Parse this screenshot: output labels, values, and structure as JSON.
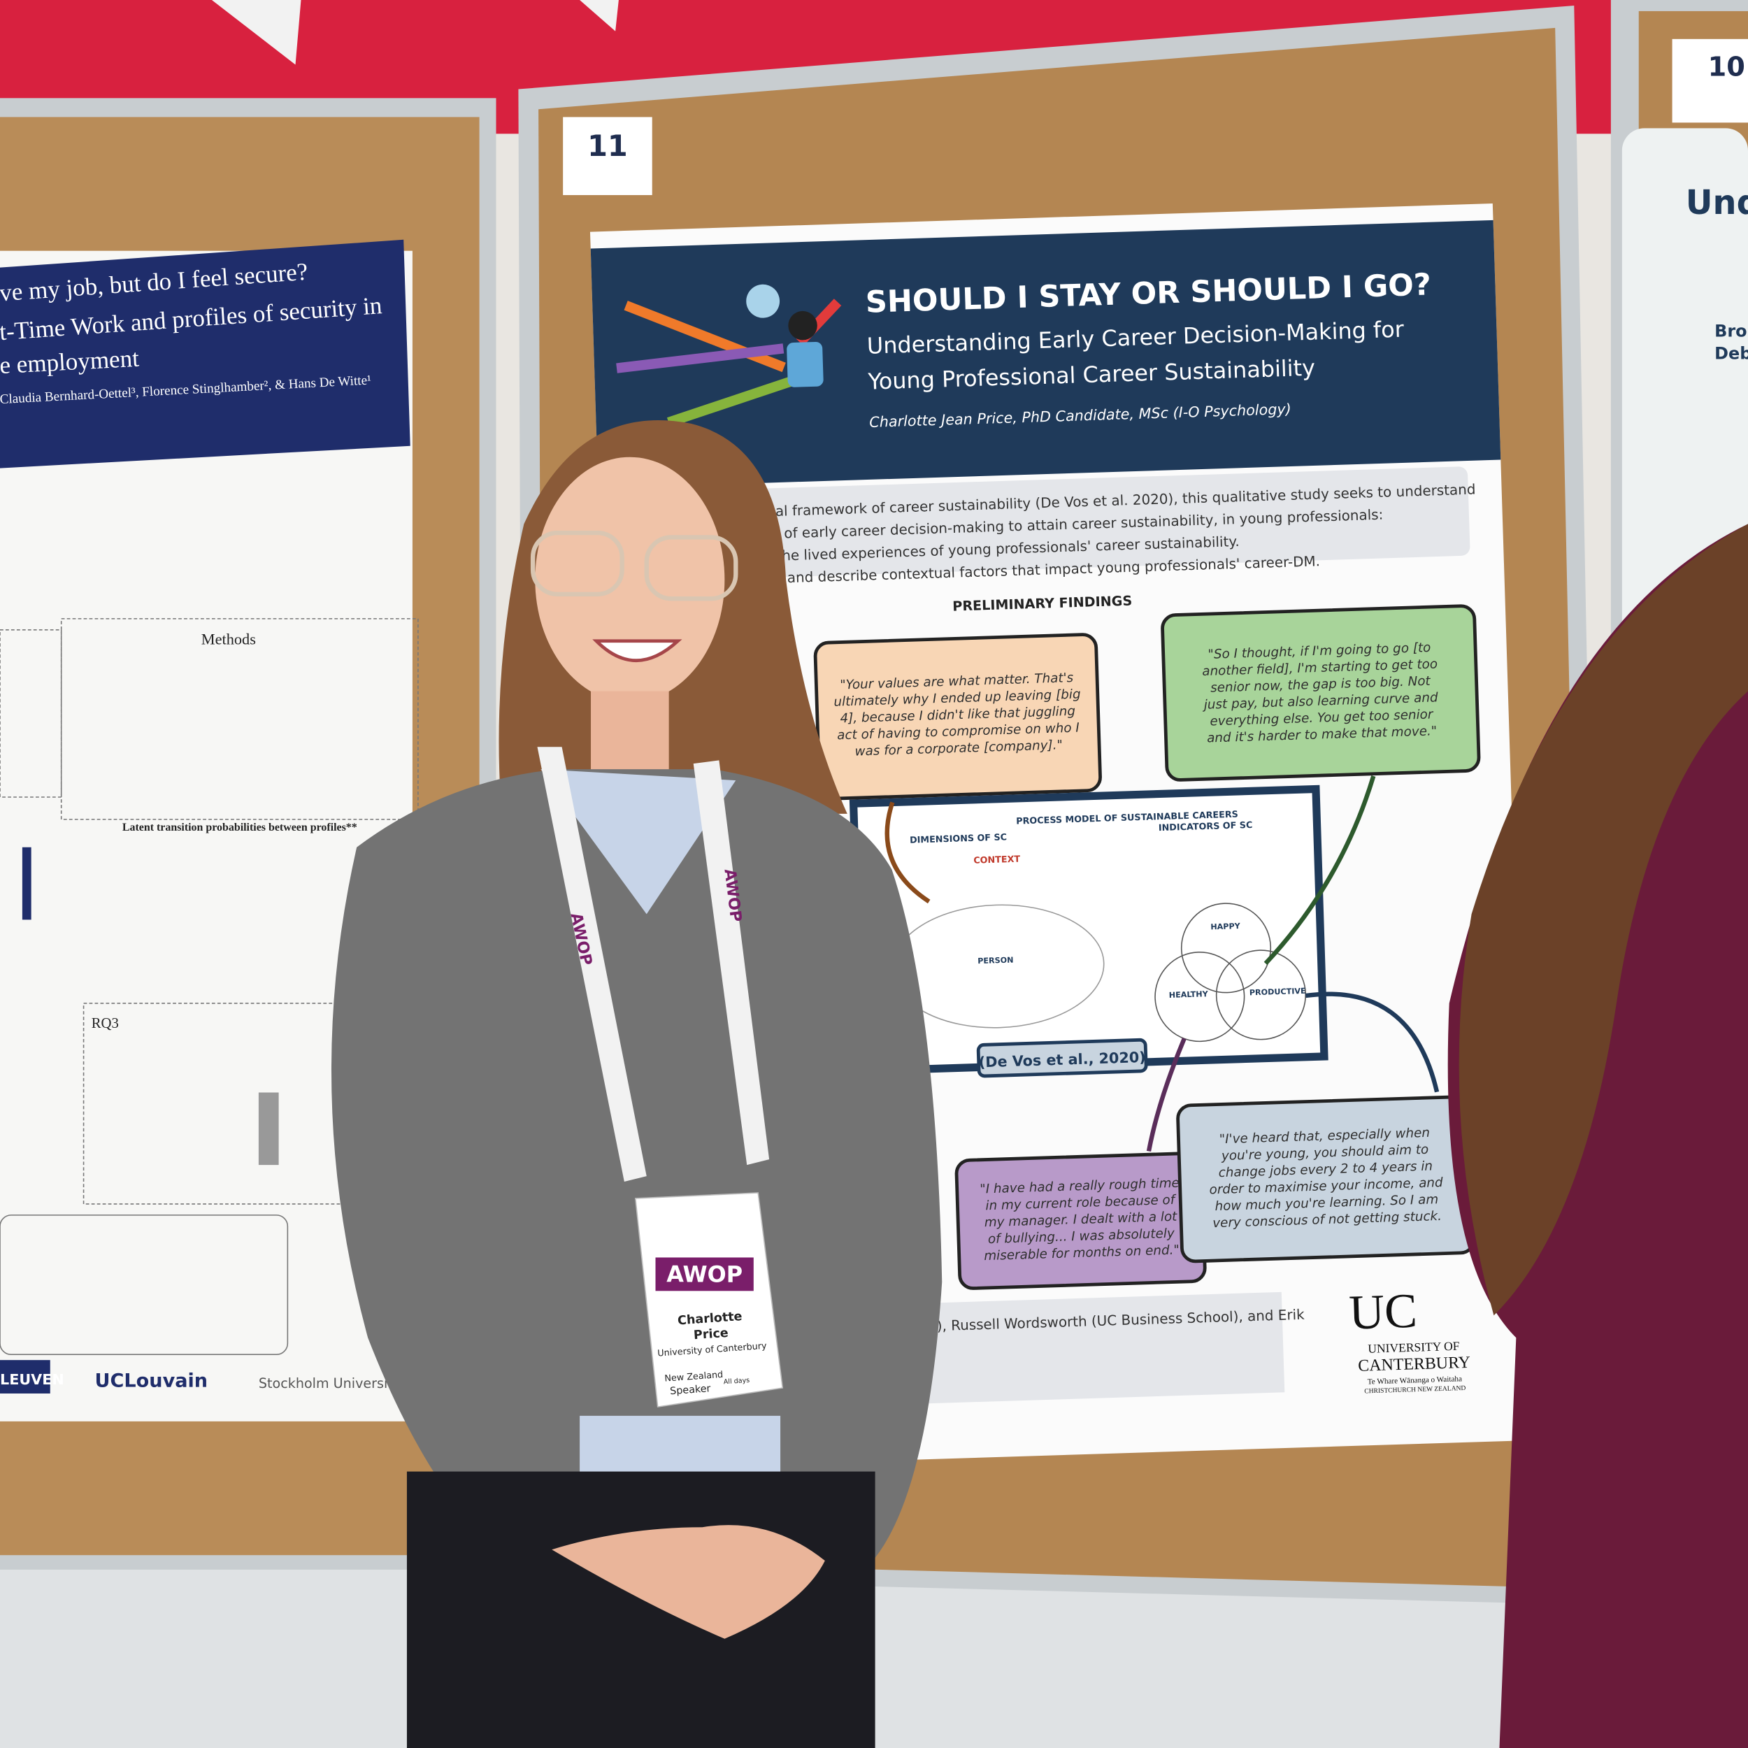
{
  "left_poster": {
    "title_lines": [
      "ve my job, but do I feel secure?",
      "t-Time Work and profiles of security in",
      "e employment"
    ],
    "authors": "Claudia Bernhard-Oettel³, Florence Stinglhamber², & Hans De Witte¹",
    "methods_heading": "Methods",
    "table_title": "Latent transition probabilities between profiles**",
    "rq": "RQ3",
    "logos": [
      "LEUVEN",
      "UCLouvain",
      "Stockholm University"
    ]
  },
  "center_board": {
    "number": "11"
  },
  "right_board": {
    "number": "10",
    "poster_fragments": [
      "Und",
      "Bro",
      "Deb"
    ]
  },
  "main_poster": {
    "title": "SHOULD I STAY OR SHOULD I GO?",
    "subtitle_lines": [
      "Understanding Early Career Decision-Making for",
      "Young Professional Career Sustainability"
    ],
    "author": "Charlotte Jean Price, PhD Candidate, MSc (I-O Psychology)",
    "intro_lines": [
      "nceptual framework of career sustainability (De Vos et al. 2020), this qualitative study seeks to understand",
      "erience of early career decision-making to attain career sustainability, in young professionals:",
      "xplore the lived experiences of young professionals' career sustainability.",
      "cognise and describe contextual factors that impact young professionals' career-DM."
    ],
    "findings_heading": "PRELIMINARY FINDINGS",
    "quotes": [
      {
        "lines": [
          "\"Your values are what matter. That's",
          "ultimately why I ended up leaving [big",
          "4], because I didn't like that juggling",
          "act of having to compromise on who I",
          "was for a corporate [company].\""
        ]
      },
      {
        "lines": [
          "\"So I thought, if I'm going to go [to",
          "another field], I'm starting to get too",
          "senior now, the gap is too big. Not",
          "just pay, but also learning curve and",
          "everything else. You get too senior",
          "and it's harder to make that move.\""
        ]
      },
      {
        "lines": [
          "\"I have had a really rough time",
          "in my current role because of",
          "my manager. I dealt with a lot",
          "of bullying... I was absolutely",
          "miserable for months on end.\""
        ]
      },
      {
        "lines": [
          "\"I've heard that, especially when",
          "you're young, you should aim to",
          "change jobs every 2 to 4 years in",
          "order to maximise your income, and",
          "how much you're learning. So I am",
          "very conscious of not getting stuck."
        ]
      }
    ],
    "model": {
      "title": "PROCESS MODEL OF SUSTAINABLE CAREERS",
      "dimensions": "DIMENSIONS OF SC",
      "indicators": "INDICATORS OF SC",
      "context": "CONTEXT",
      "person": "PERSON",
      "happy": "HAPPY",
      "healthy": "HEALTHY",
      "productive": "PRODUCTIVE",
      "citation": "(De Vos et al., 2020)"
    },
    "acknowledgement": "), Russell Wordsworth (UC Business School), and Erik",
    "logo": {
      "mark": "UC",
      "line1": "UNIVERSITY OF",
      "line2": "CANTERBURY",
      "line3": "Te Whare Wānanga o Waitaha",
      "line4": "CHRISTCHURCH NEW ZEALAND"
    }
  },
  "badge": {
    "event": "AWOP",
    "first_name": "Charlotte",
    "last_name": "Price",
    "affiliation": "University of Canterbury",
    "country": "New Zealand",
    "role": "Speaker",
    "days": "All days",
    "lanyard": "AWOP"
  }
}
